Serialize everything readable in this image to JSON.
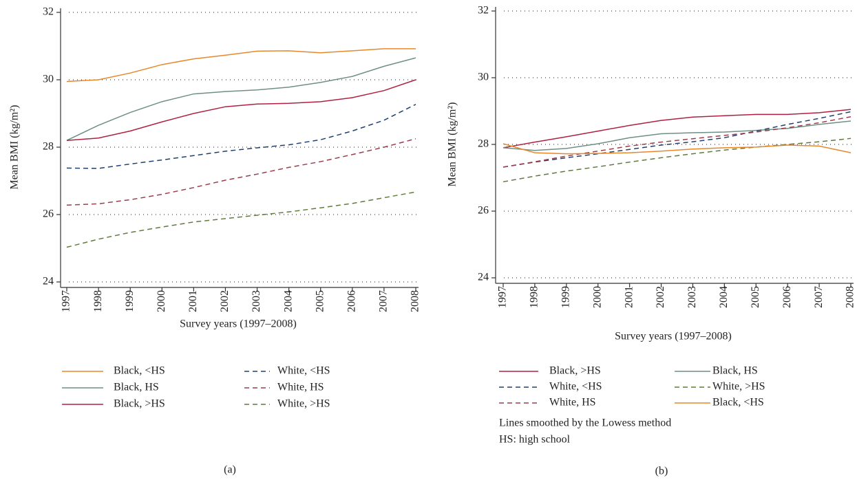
{
  "chart_data": [
    {
      "type": "line",
      "panel_label": "(a)",
      "y_label": "Mean BMI (kg/m²)",
      "x_label": "Survey years (1997–2008)",
      "categories": [
        "1997",
        "1998",
        "1999",
        "2000",
        "2001",
        "2002",
        "2003",
        "2004",
        "2005",
        "2006",
        "2007",
        "2008"
      ],
      "ylim": [
        24,
        32
      ],
      "yticks": [
        24,
        26,
        28,
        30,
        32
      ],
      "grid": true,
      "legend_fill": "column",
      "series": [
        {
          "name": "Black, <HS",
          "color": "#e8872a",
          "dashed": false,
          "values": [
            29.95,
            30.0,
            30.2,
            30.45,
            30.62,
            30.73,
            30.85,
            30.86,
            30.8,
            30.86,
            30.92,
            30.92
          ]
        },
        {
          "name": "Black, HS",
          "color": "#6e8f84",
          "dashed": false,
          "values": [
            28.2,
            28.65,
            29.03,
            29.35,
            29.58,
            29.65,
            29.7,
            29.78,
            29.92,
            30.1,
            30.4,
            30.65
          ]
        },
        {
          "name": "Black, >HS",
          "color": "#b0203e",
          "dashed": false,
          "values": [
            28.2,
            28.27,
            28.48,
            28.75,
            29.0,
            29.2,
            29.28,
            29.3,
            29.35,
            29.47,
            29.68,
            30.0
          ]
        },
        {
          "name": "White, <HS",
          "color": "#1f3f6e",
          "dashed": true,
          "values": [
            27.38,
            27.37,
            27.5,
            27.62,
            27.75,
            27.88,
            27.98,
            28.07,
            28.22,
            28.48,
            28.8,
            29.27
          ]
        },
        {
          "name": "White, HS",
          "color": "#9c3b4a",
          "dashed": true,
          "values": [
            26.28,
            26.32,
            26.44,
            26.6,
            26.8,
            27.02,
            27.2,
            27.4,
            27.57,
            27.78,
            28.0,
            28.25
          ]
        },
        {
          "name": "White, >HS",
          "color": "#5f7a3a",
          "dashed": true,
          "values": [
            25.03,
            25.27,
            25.47,
            25.63,
            25.78,
            25.88,
            25.98,
            26.08,
            26.2,
            26.33,
            26.5,
            26.67
          ]
        }
      ]
    },
    {
      "type": "line",
      "panel_label": "(b)",
      "y_label": "Mean BMI (kg/m²)",
      "x_label": "Survey years (1997–2008)",
      "categories": [
        "1997",
        "1998",
        "1999",
        "2000",
        "2001",
        "2002",
        "2003",
        "2004",
        "2005",
        "2006",
        "2007",
        "2008"
      ],
      "ylim": [
        24,
        32
      ],
      "yticks": [
        24,
        26,
        28,
        30,
        32
      ],
      "grid": true,
      "legend_fill": "row",
      "notes": [
        "Lines smoothed by the Lowess method",
        "HS: high school"
      ],
      "series": [
        {
          "name": "Black, >HS",
          "color": "#b0203e",
          "dashed": false,
          "values": [
            27.9,
            28.07,
            28.23,
            28.4,
            28.57,
            28.72,
            28.82,
            28.86,
            28.9,
            28.9,
            28.95,
            29.05
          ]
        },
        {
          "name": "Black, HS",
          "color": "#6e8f84",
          "dashed": false,
          "values": [
            27.9,
            27.82,
            27.88,
            28.02,
            28.2,
            28.32,
            28.35,
            28.37,
            28.42,
            28.48,
            28.6,
            28.7
          ]
        },
        {
          "name": "White, <HS",
          "color": "#1f3f6e",
          "dashed": true,
          "values": [
            27.32,
            27.47,
            27.6,
            27.72,
            27.85,
            27.98,
            28.08,
            28.2,
            28.4,
            28.6,
            28.78,
            28.98
          ]
        },
        {
          "name": "White, >HS",
          "color": "#5f7a3a",
          "dashed": true,
          "values": [
            26.88,
            27.05,
            27.2,
            27.33,
            27.47,
            27.6,
            27.72,
            27.83,
            27.92,
            28.0,
            28.08,
            28.18
          ]
        },
        {
          "name": "White, HS",
          "color": "#9c3b4a",
          "dashed": true,
          "values": [
            27.32,
            27.48,
            27.65,
            27.8,
            27.95,
            28.07,
            28.17,
            28.27,
            28.37,
            28.5,
            28.65,
            28.83
          ]
        },
        {
          "name": "Black, <HS",
          "color": "#e8872a",
          "dashed": false,
          "values": [
            28.02,
            27.75,
            27.72,
            27.73,
            27.75,
            27.8,
            27.86,
            27.9,
            27.92,
            27.98,
            27.95,
            27.75
          ]
        }
      ]
    }
  ]
}
